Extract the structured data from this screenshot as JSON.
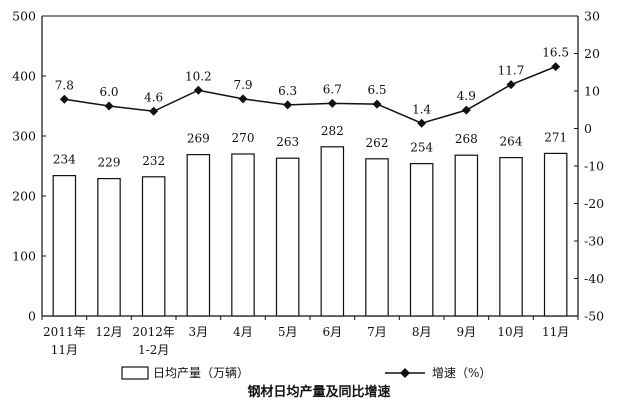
{
  "chart_data": {
    "type": "bar+line",
    "title": "钢材日均产量及同比增速",
    "categories": [
      [
        "2011年",
        "11月"
      ],
      [
        "12月"
      ],
      [
        "2012年",
        "1-2月"
      ],
      [
        "3月"
      ],
      [
        "4月"
      ],
      [
        "5月"
      ],
      [
        "6月"
      ],
      [
        "7月"
      ],
      [
        "8月"
      ],
      [
        "9月"
      ],
      [
        "10月"
      ],
      [
        "11月"
      ]
    ],
    "series": [
      {
        "name": "日均产量（万辆）",
        "type": "bar",
        "axis": "left",
        "values": [
          234,
          229,
          232,
          269,
          270,
          263,
          282,
          262,
          254,
          268,
          264,
          271
        ],
        "labels": [
          "234",
          "229",
          "232",
          "269",
          "270",
          "263",
          "282",
          "262",
          "254",
          "268",
          "264",
          "271"
        ]
      },
      {
        "name": "增速（%）",
        "type": "line",
        "axis": "right",
        "marker": "diamond",
        "values": [
          7.8,
          6.0,
          4.6,
          10.2,
          7.9,
          6.3,
          6.7,
          6.5,
          1.4,
          4.9,
          11.7,
          16.5
        ],
        "labels": [
          "7.8",
          "6.0",
          "4.6",
          "10.2",
          "7.9",
          "6.3",
          "6.7",
          "6.5",
          "1.4",
          "4.9",
          "11.7",
          "16.5"
        ]
      }
    ],
    "left_axis": {
      "min": 0,
      "max": 500,
      "ticks": [
        "0",
        "100",
        "200",
        "300",
        "400",
        "500"
      ]
    },
    "right_axis": {
      "min": -50,
      "max": 30,
      "ticks": [
        "-50",
        "-40",
        "-30",
        "-20",
        "-10",
        "0",
        "10",
        "20",
        "30"
      ]
    },
    "grid": false,
    "legend_position": "bottom",
    "colors": {
      "bar_fill": "#ffffff",
      "stroke": "#111111"
    }
  }
}
